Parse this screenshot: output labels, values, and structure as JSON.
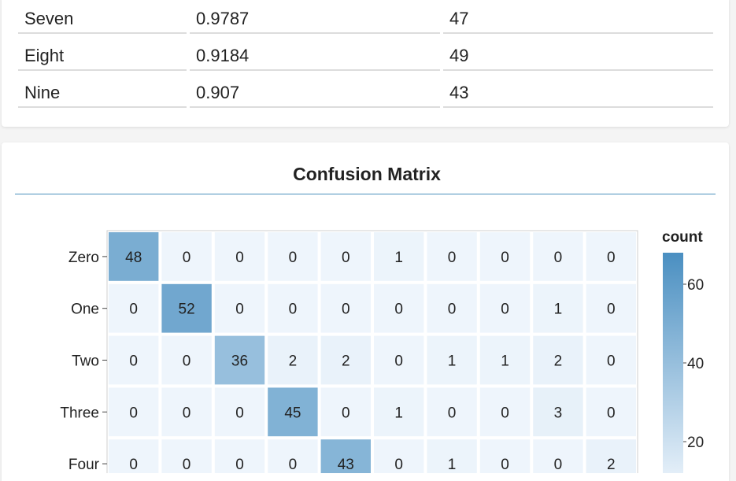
{
  "table": {
    "rows": [
      {
        "label": "Seven",
        "score": "0.9787",
        "count": "47"
      },
      {
        "label": "Eight",
        "score": "0.9184",
        "count": "49"
      },
      {
        "label": "Nine",
        "score": "0.907",
        "count": "43"
      }
    ]
  },
  "chart_data": {
    "type": "heatmap",
    "title": "Confusion Matrix",
    "row_labels": [
      "Zero",
      "One",
      "Two",
      "Three",
      "Four"
    ],
    "values": [
      [
        48,
        0,
        0,
        0,
        0,
        1,
        0,
        0,
        0,
        0
      ],
      [
        0,
        52,
        0,
        0,
        0,
        0,
        0,
        0,
        1,
        0
      ],
      [
        0,
        0,
        36,
        2,
        2,
        0,
        1,
        1,
        2,
        0
      ],
      [
        0,
        0,
        0,
        45,
        0,
        1,
        0,
        0,
        3,
        0
      ],
      [
        0,
        0,
        0,
        0,
        43,
        0,
        1,
        0,
        0,
        2
      ]
    ],
    "legend": {
      "title": "count",
      "ticks": [
        60,
        40,
        20
      ],
      "max": 68
    },
    "colors": {
      "low": "#eef5fc",
      "high": "#4a8fc1",
      "dark_text_threshold": 0.5
    }
  }
}
